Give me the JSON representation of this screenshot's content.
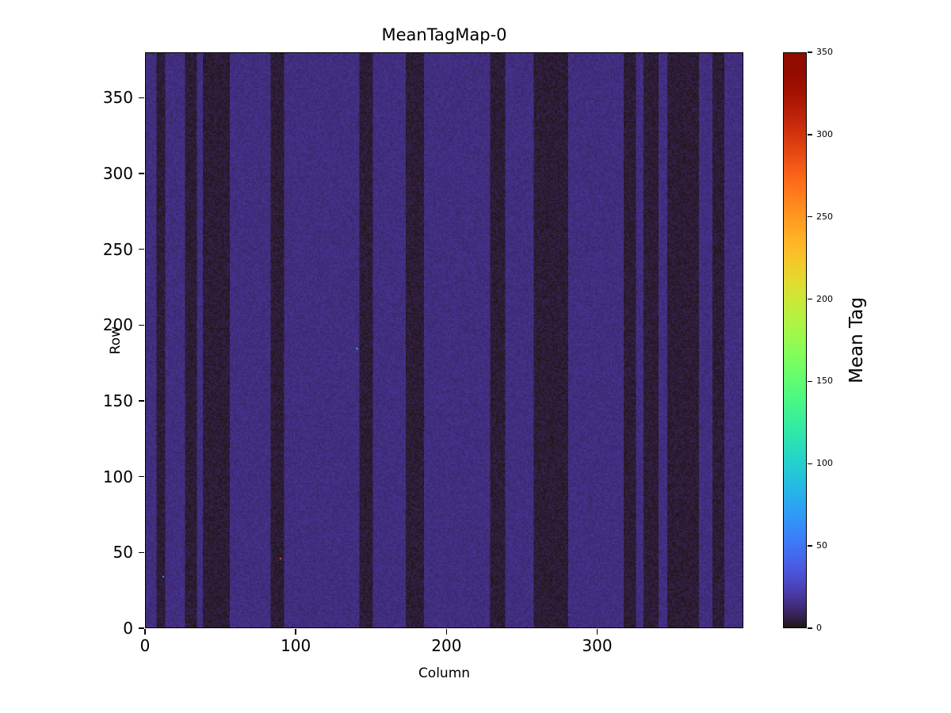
{
  "chart_data": {
    "type": "heatmap",
    "title": "MeanTagMap-0",
    "xlabel": "Column",
    "ylabel": "Row",
    "colorbar_label": "Mean Tag",
    "colormap": "turbo",
    "xlim": [
      0,
      397
    ],
    "ylim": [
      0,
      380
    ],
    "vmin": 0,
    "vmax": 350,
    "x_ticks": [
      0,
      100,
      200,
      300
    ],
    "y_ticks": [
      0,
      50,
      100,
      150,
      200,
      250,
      300,
      350
    ],
    "colorbar_ticks": [
      0,
      50,
      100,
      150,
      200,
      250,
      300,
      350
    ],
    "background_value": 13,
    "stripe_value": 3,
    "noise_amplitude": 3,
    "stripes": [
      [
        7,
        12
      ],
      [
        26,
        33
      ],
      [
        38,
        55
      ],
      [
        83,
        91
      ],
      [
        142,
        150
      ],
      [
        173,
        184
      ],
      [
        229,
        238
      ],
      [
        258,
        280
      ],
      [
        318,
        325
      ],
      [
        331,
        340
      ],
      [
        347,
        367
      ],
      [
        377,
        384
      ]
    ],
    "specks": [
      {
        "col": 89,
        "row": 45,
        "value": 280
      },
      {
        "col": 11,
        "row": 33,
        "value": 60
      },
      {
        "col": 140,
        "row": 184,
        "value": 90
      },
      {
        "col": 281,
        "row": 8,
        "value": 30
      }
    ],
    "legend_position": "right-colorbar",
    "grid": false
  }
}
